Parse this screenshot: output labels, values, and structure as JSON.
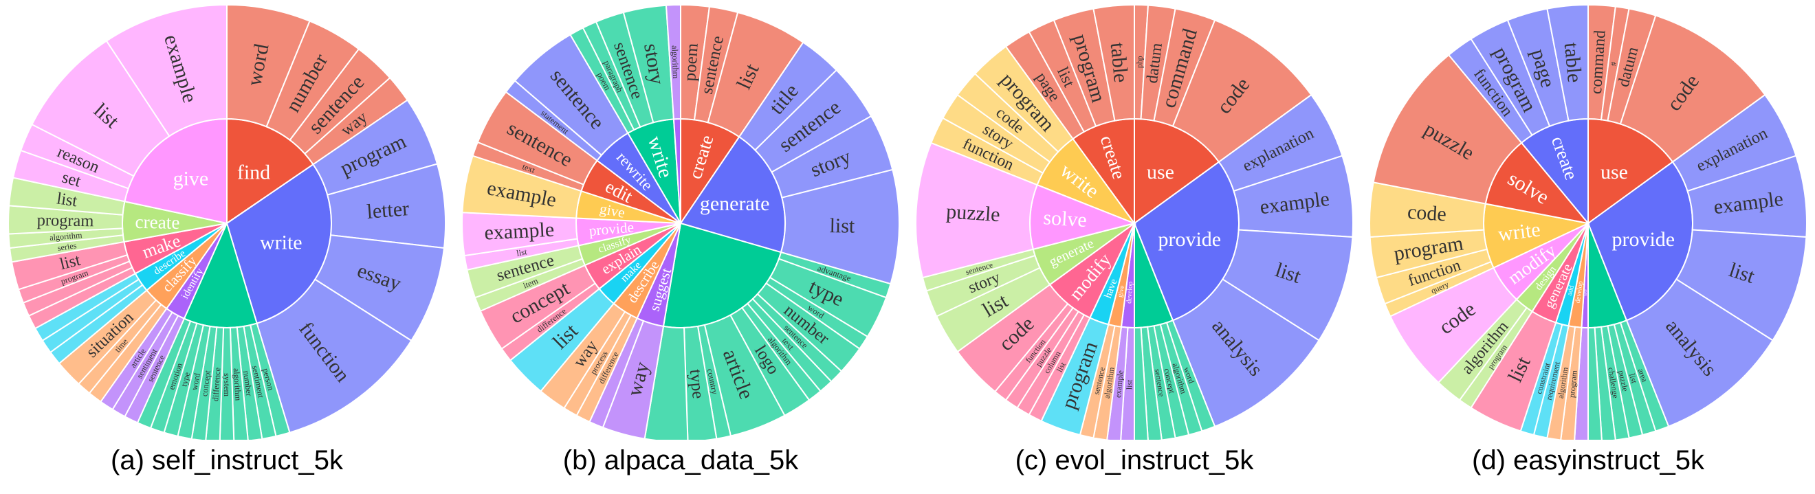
{
  "colors": {
    "inner": [
      "#ef553b",
      "#636efa",
      "#00cc96",
      "#ab63fa",
      "#ffa15a",
      "#19d3f3",
      "#ff6692",
      "#b6e880",
      "#ff97ff",
      "#fecb52"
    ],
    "outer": [
      "#f28a78",
      "#8f96fb",
      "#4ddbb0",
      "#c393fb",
      "#ffbd8b",
      "#5ee0f6",
      "#ff94b3",
      "#cbefa6",
      "#ffb6ff",
      "#fedb86"
    ]
  },
  "chart_data": [
    {
      "type": "sunburst",
      "caption": "(a) self_instruct_5k",
      "slices": [
        {
          "label": "find",
          "value": 15,
          "children": [
            {
              "label": "word",
              "value": 6
            },
            {
              "label": "number",
              "value": 4
            },
            {
              "label": "sentence",
              "value": 3
            },
            {
              "label": "way",
              "value": 2
            }
          ]
        },
        {
          "label": "write",
          "value": 29,
          "children": [
            {
              "label": "program",
              "value": 5
            },
            {
              "label": "letter",
              "value": 6
            },
            {
              "label": "essay",
              "value": 7
            },
            {
              "label": "function",
              "value": 11
            }
          ]
        },
        {
          "label": "",
          "value": 11,
          "children": [
            {
              "label": "person",
              "value": 1
            },
            {
              "label": "sentiment",
              "value": 1
            },
            {
              "label": "number",
              "value": 1
            },
            {
              "label": "algorithm",
              "value": 1
            },
            {
              "label": "system",
              "value": 1
            },
            {
              "label": "difference",
              "value": 1
            },
            {
              "label": "concept",
              "value": 1
            },
            {
              "label": "word",
              "value": 1
            },
            {
              "label": "type",
              "value": 1
            },
            {
              "label": "emotion",
              "value": 1
            },
            {
              "label": "",
              "value": 1
            }
          ]
        },
        {
          "label": "identify",
          "value": 3,
          "children": [
            {
              "label": "sentence",
              "value": 1
            },
            {
              "label": "sentiment",
              "value": 1
            },
            {
              "label": "article",
              "value": 1
            }
          ]
        },
        {
          "label": "classify",
          "value": 4,
          "children": [
            {
              "label": "",
              "value": 1
            },
            {
              "label": "time",
              "value": 1
            },
            {
              "label": "situation",
              "value": 2
            }
          ]
        },
        {
          "label": "describe",
          "value": 3,
          "children": [
            {
              "label": "",
              "value": 1
            },
            {
              "label": "",
              "value": 1
            },
            {
              "label": "",
              "value": 1
            }
          ]
        },
        {
          "label": "make",
          "value": 5,
          "children": [
            {
              "label": "",
              "value": 1
            },
            {
              "label": "",
              "value": 1
            },
            {
              "label": "program",
              "value": 1
            },
            {
              "label": "list",
              "value": 2
            }
          ]
        },
        {
          "label": "create",
          "value": 6,
          "children": [
            {
              "label": "series",
              "value": 1
            },
            {
              "label": "algorithm",
              "value": 1
            },
            {
              "label": "program",
              "value": 2
            },
            {
              "label": "list",
              "value": 2
            }
          ]
        },
        {
          "label": "give",
          "value": 21,
          "children": [
            {
              "label": "set",
              "value": 2
            },
            {
              "label": "reason",
              "value": 2
            },
            {
              "label": "list",
              "value": 8
            },
            {
              "label": "example",
              "value": 9
            }
          ]
        }
      ]
    },
    {
      "type": "sunburst",
      "caption": "(b) alpaca_data_5k",
      "slices": [
        {
          "label": "create",
          "value": 9,
          "children": [
            {
              "label": "poem",
              "value": 2
            },
            {
              "label": "sentence",
              "value": 2
            },
            {
              "label": "list",
              "value": 5
            }
          ]
        },
        {
          "label": "generate",
          "value": 19,
          "children": [
            {
              "label": "title",
              "value": 3
            },
            {
              "label": "sentence",
              "value": 4
            },
            {
              "label": "story",
              "value": 4
            },
            {
              "label": "list",
              "value": 8
            }
          ]
        },
        {
          "label": "",
          "value": 22,
          "children": [
            {
              "label": "advantage",
              "value": 1
            },
            {
              "label": "type",
              "value": 3
            },
            {
              "label": "word",
              "value": 1
            },
            {
              "label": "number",
              "value": 2
            },
            {
              "label": "sentence",
              "value": 1
            },
            {
              "label": "text",
              "value": 1
            },
            {
              "label": "algorithm",
              "value": 1
            },
            {
              "label": "logo",
              "value": 2
            },
            {
              "label": "article",
              "value": 4
            },
            {
              "label": "country",
              "value": 1
            },
            {
              "label": "type",
              "value": 2
            },
            {
              "label": "",
              "value": 3
            }
          ]
        },
        {
          "label": "suggest",
          "value": 4,
          "children": [
            {
              "label": "way",
              "value": 3
            },
            {
              "label": "",
              "value": 1
            }
          ]
        },
        {
          "label": "describe",
          "value": 4,
          "children": [
            {
              "label": "difference",
              "value": 1
            },
            {
              "label": "process",
              "value": 1
            },
            {
              "label": "way",
              "value": 2
            }
          ]
        },
        {
          "label": "make",
          "value": 3,
          "children": [
            {
              "label": "list",
              "value": 3
            }
          ]
        },
        {
          "label": "explain",
          "value": 4,
          "children": [
            {
              "label": "difference",
              "value": 1
            },
            {
              "label": "concept",
              "value": 3
            }
          ]
        },
        {
          "label": "classify",
          "value": 3,
          "children": [
            {
              "label": "item",
              "value": 1
            },
            {
              "label": "sentence",
              "value": 2
            }
          ]
        },
        {
          "label": "provide",
          "value": 4,
          "children": [
            {
              "label": "list",
              "value": 1
            },
            {
              "label": "example",
              "value": 3
            }
          ]
        },
        {
          "label": "give",
          "value": 4,
          "children": [
            {
              "label": "example",
              "value": 4
            }
          ]
        },
        {
          "label": "edit",
          "value": 5,
          "children": [
            {
              "label": "text",
              "value": 1
            },
            {
              "label": "sentence",
              "value": 4
            }
          ]
        },
        {
          "label": "rewrite",
          "value": 6,
          "children": [
            {
              "label": "statement",
              "value": 1
            },
            {
              "label": "sentence",
              "value": 5
            }
          ]
        },
        {
          "label": "write",
          "value": 7,
          "children": [
            {
              "label": "poem",
              "value": 1
            },
            {
              "label": "paragraph",
              "value": 1
            },
            {
              "label": "sentence",
              "value": 2
            },
            {
              "label": "story",
              "value": 3
            }
          ]
        },
        {
          "label": "",
          "value": 1,
          "children": [
            {
              "label": "algorithm",
              "value": 1
            }
          ]
        }
      ]
    },
    {
      "type": "sunburst",
      "caption": "(c) evol_instruct_5k",
      "slices": [
        {
          "label": "use",
          "value": 15,
          "children": [
            {
              "label": "php",
              "value": 1
            },
            {
              "label": "datum",
              "value": 2
            },
            {
              "label": "command",
              "value": 3
            },
            {
              "label": "code",
              "value": 9
            }
          ]
        },
        {
          "label": "provide",
          "value": 29,
          "children": [
            {
              "label": "explanation",
              "value": 5
            },
            {
              "label": "example",
              "value": 6
            },
            {
              "label": "list",
              "value": 8
            },
            {
              "label": "analysis",
              "value": 10
            }
          ]
        },
        {
          "label": "",
          "value": 6,
          "children": [
            {
              "label": "word",
              "value": 1
            },
            {
              "label": "algorithm",
              "value": 1
            },
            {
              "label": "concept",
              "value": 1
            },
            {
              "label": "sentence",
              "value": 1
            },
            {
              "label": "",
              "value": 1
            },
            {
              "label": "",
              "value": 1
            }
          ]
        },
        {
          "label": "develop",
          "value": 2,
          "children": [
            {
              "label": "list",
              "value": 1
            },
            {
              "label": "example",
              "value": 1
            }
          ]
        },
        {
          "label": "give",
          "value": 2,
          "children": [
            {
              "label": "algorithm",
              "value": 1
            },
            {
              "label": "sentence",
              "value": 1
            }
          ]
        },
        {
          "label": "have",
          "value": 3,
          "children": [
            {
              "label": "program",
              "value": 3
            }
          ]
        },
        {
          "label": "modify",
          "value": 8,
          "children": [
            {
              "label": "list",
              "value": 1
            },
            {
              "label": "column",
              "value": 1
            },
            {
              "label": "puzzle",
              "value": 1
            },
            {
              "label": "function",
              "value": 1
            },
            {
              "label": "code",
              "value": 4
            }
          ]
        },
        {
          "label": "generate",
          "value": 6,
          "children": [
            {
              "label": "list",
              "value": 3
            },
            {
              "label": "story",
              "value": 2
            },
            {
              "label": "sentence",
              "value": 1
            }
          ]
        },
        {
          "label": "solve",
          "value": 10,
          "children": [
            {
              "label": "puzzle",
              "value": 10
            }
          ]
        },
        {
          "label": "write",
          "value": 9,
          "children": [
            {
              "label": "function",
              "value": 2
            },
            {
              "label": "story",
              "value": 2
            },
            {
              "label": "code",
              "value": 2
            },
            {
              "label": "program",
              "value": 3
            }
          ]
        },
        {
          "label": "create",
          "value": 10,
          "children": [
            {
              "label": "page",
              "value": 2
            },
            {
              "label": "list",
              "value": 2
            },
            {
              "label": "program",
              "value": 3
            },
            {
              "label": "table",
              "value": 3
            }
          ]
        }
      ]
    },
    {
      "type": "sunburst",
      "caption": "(d) easyinstruct_5k",
      "slices": [
        {
          "label": "use",
          "value": 15,
          "children": [
            {
              "label": "command",
              "value": 2
            },
            {
              "label": "#",
              "value": 1
            },
            {
              "label": "datum",
              "value": 2
            },
            {
              "label": "code",
              "value": 10
            }
          ]
        },
        {
          "label": "provide",
          "value": 29,
          "children": [
            {
              "label": "explanation",
              "value": 5
            },
            {
              "label": "example",
              "value": 6
            },
            {
              "label": "list",
              "value": 8
            },
            {
              "label": "analysis",
              "value": 10
            }
          ]
        },
        {
          "label": "",
          "value": 6,
          "children": [
            {
              "label": "area",
              "value": 1
            },
            {
              "label": "list",
              "value": 1
            },
            {
              "label": "puzzle",
              "value": 1
            },
            {
              "label": "challenge",
              "value": 1
            },
            {
              "label": "",
              "value": 1
            },
            {
              "label": "",
              "value": 1
            }
          ]
        },
        {
          "label": "have",
          "value": 1,
          "children": [
            {
              "label": "",
              "value": 1
            }
          ]
        },
        {
          "label": "develop",
          "value": 2,
          "children": [
            {
              "label": "program",
              "value": 1
            },
            {
              "label": "algorithm",
              "value": 1
            }
          ]
        },
        {
          "label": "add",
          "value": 2,
          "children": [
            {
              "label": "requirement",
              "value": 1
            },
            {
              "label": "constraint",
              "value": 1
            }
          ]
        },
        {
          "label": "generate",
          "value": 4,
          "children": [
            {
              "label": "list",
              "value": 4
            }
          ]
        },
        {
          "label": "design",
          "value": 3,
          "children": [
            {
              "label": "program",
              "value": 1
            },
            {
              "label": "algorithm",
              "value": 2
            }
          ]
        },
        {
          "label": "modify",
          "value": 6,
          "children": [
            {
              "label": "code",
              "value": 6
            }
          ]
        },
        {
          "label": "write",
          "value": 10,
          "children": [
            {
              "label": "query",
              "value": 1
            },
            {
              "label": "function",
              "value": 2
            },
            {
              "label": "program",
              "value": 3
            },
            {
              "label": "code",
              "value": 4
            }
          ]
        },
        {
          "label": "solve",
          "value": 11,
          "children": [
            {
              "label": "puzzle",
              "value": 11
            }
          ]
        },
        {
          "label": "create",
          "value": 11,
          "children": [
            {
              "label": "function",
              "value": 2
            },
            {
              "label": "program",
              "value": 3
            },
            {
              "label": "page",
              "value": 3
            },
            {
              "label": "table",
              "value": 3
            }
          ]
        }
      ]
    }
  ]
}
